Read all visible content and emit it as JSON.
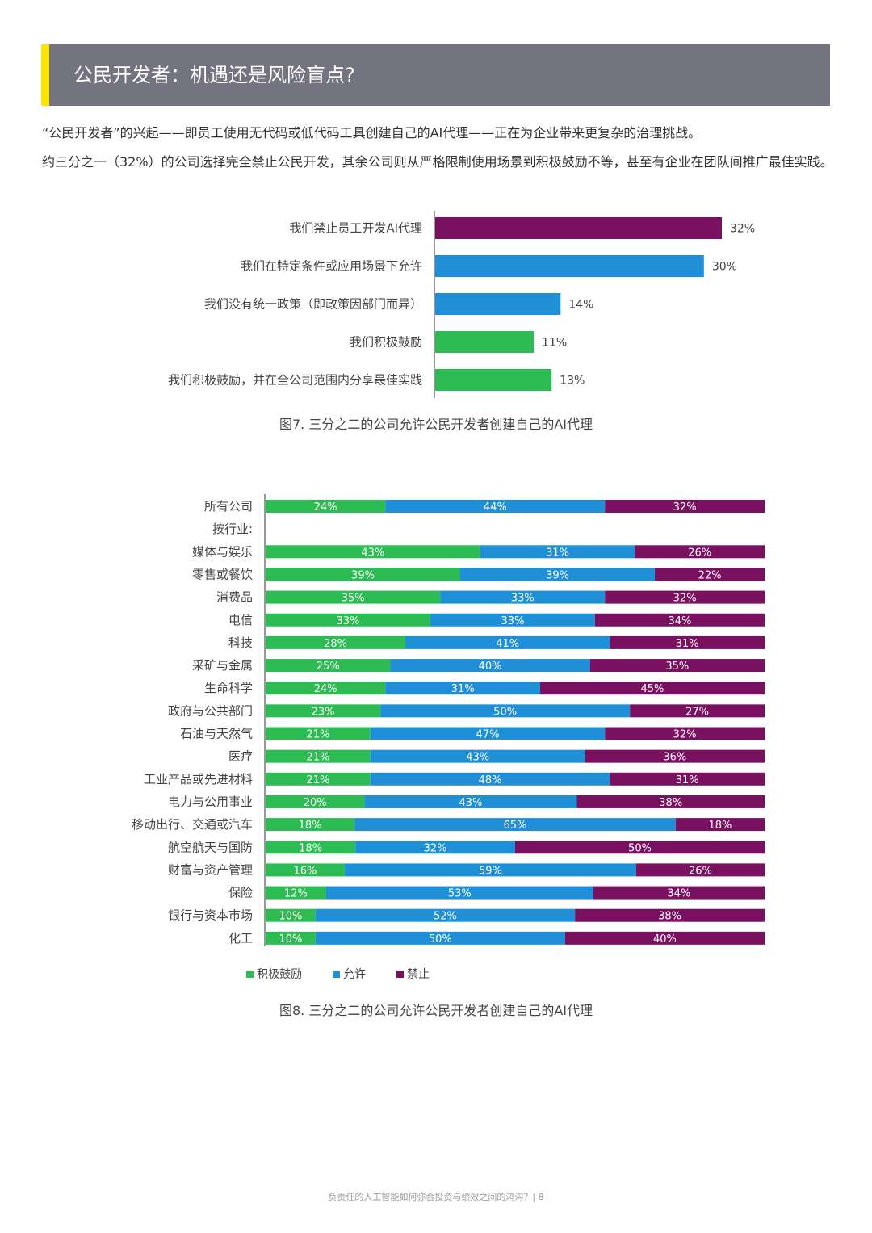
{
  "header": {
    "title": "公民开发者：机遇还是风险盲点?"
  },
  "intro": {
    "p1": "“公民开发者”的兴起——即员工使用无代码或低代码工具创建自己的AI代理——正在为企业带来更复杂的治理挑战。",
    "p2": "约三分之一（32%）的公司选择完全禁止公民开发，其余公司则从严格限制使用场景到积极鼓励不等，甚至有企业在团队间推广最佳实践。"
  },
  "colors": {
    "purple": "#7a1060",
    "blue": "#1f8fd8",
    "green": "#2dbb54",
    "header_gray": "#747480",
    "accent_yellow": "#ffe600"
  },
  "chart_data": [
    {
      "type": "bar",
      "orientation": "horizontal",
      "categories": [
        "我们禁止员工开发AI代理",
        "我们在特定条件或应用场景下允许",
        "我们没有统一政策（即政策因部门而异）",
        "我们积极鼓励",
        "我们积极鼓励，并在全公司范围内分享最佳实践"
      ],
      "values": [
        32,
        30,
        14,
        11,
        13
      ],
      "labels": [
        "32%",
        "30%",
        "14%",
        "11%",
        "13%"
      ],
      "colors": [
        "#7a1060",
        "#1f8fd8",
        "#1f8fd8",
        "#2dbb54",
        "#2dbb54"
      ],
      "xlim": [
        0,
        32
      ]
    },
    {
      "type": "bar",
      "orientation": "horizontal",
      "stacked": true,
      "categories": [
        "所有公司",
        "按行业:",
        "媒体与娱乐",
        "零售或餐饮",
        "消费品",
        "电信",
        "科技",
        "采矿与金属",
        "生命科学",
        "政府与公共部门",
        "石油与天然气",
        "医疗",
        "工业产品或先进材料",
        "电力与公用事业",
        "移动出行、交通或汽车",
        "航空航天与国防",
        "财富与资产管理",
        "保险",
        "银行与资本市场",
        "化工"
      ],
      "series": [
        {
          "name": "积极鼓励",
          "color": "#2dbb54",
          "values": [
            24,
            null,
            43,
            39,
            35,
            33,
            28,
            25,
            24,
            23,
            21,
            21,
            21,
            20,
            18,
            18,
            16,
            12,
            10,
            10
          ]
        },
        {
          "name": "允许",
          "color": "#1f8fd8",
          "values": [
            44,
            null,
            31,
            39,
            33,
            33,
            41,
            40,
            31,
            50,
            47,
            43,
            48,
            43,
            65,
            32,
            59,
            53,
            52,
            50
          ]
        },
        {
          "name": "禁止",
          "color": "#7a1060",
          "values": [
            32,
            null,
            26,
            22,
            32,
            34,
            31,
            35,
            45,
            27,
            32,
            36,
            31,
            38,
            18,
            50,
            26,
            34,
            38,
            40
          ]
        }
      ],
      "legend_position": "bottom-left"
    }
  ],
  "captions": {
    "fig7": "图7. 三分之二的公司允许公民开发者创建自己的AI代理",
    "fig8": "图8. 三分之二的公司允许公民开发者创建自己的AI代理"
  },
  "legend": [
    {
      "label": "积极鼓励",
      "color": "#2dbb54"
    },
    {
      "label": "允许",
      "color": "#1f8fd8"
    },
    {
      "label": "禁止",
      "color": "#7a1060"
    }
  ],
  "footer": {
    "text": "负责任的人工智能如何弥合投资与绩效之间的鸿沟？| 8"
  }
}
